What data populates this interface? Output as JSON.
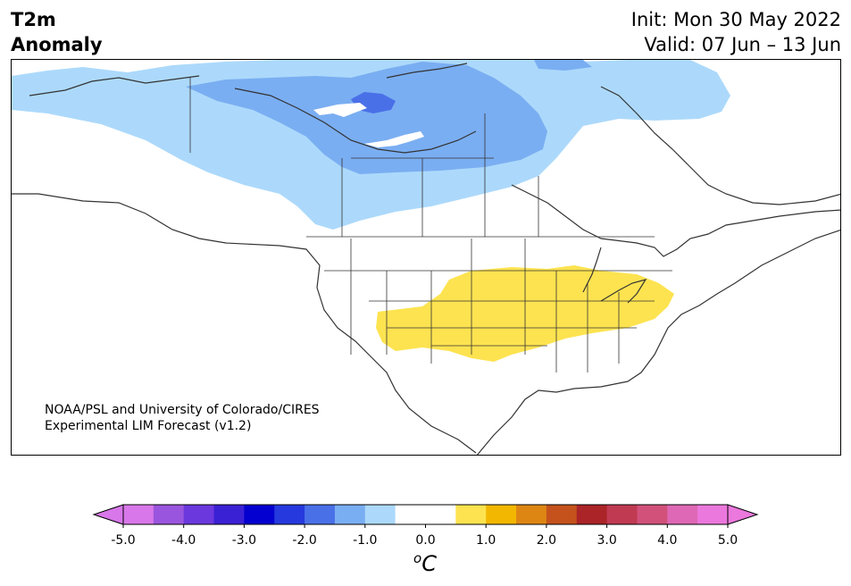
{
  "header": {
    "variable_line1": "T2m",
    "variable_line2": "Anomaly",
    "init": "Init: Mon 30 May 2022",
    "valid": "Valid: 07 Jun – 13 Jun"
  },
  "credit": {
    "line1": "NOAA/PSL and University of Colorado/CIRES",
    "line2": "Experimental LIM Forecast (v1.2)"
  },
  "colorbar": {
    "unit_base": "C",
    "unit_sup": "o",
    "ticks": [
      "-5.0",
      "-4.0",
      "-3.0",
      "-2.0",
      "-1.0",
      "0.0",
      "1.0",
      "2.0",
      "3.0",
      "4.0",
      "5.0"
    ],
    "colors": [
      "#d877e9",
      "#9a55de",
      "#6b38de",
      "#3a21d4",
      "#0400d0",
      "#2639de",
      "#4a70e8",
      "#7aaef2",
      "#acd9fb",
      "#ffffff",
      "#ffffff",
      "#fde350",
      "#f2b700",
      "#de8614",
      "#c5521c",
      "#ab2428",
      "#c03a52",
      "#d1517a",
      "#de68b5",
      "#eb78dd"
    ],
    "under_color": "#d877e9",
    "over_color": "#eb78dd"
  },
  "map_colors": {
    "light_blue": "#acd9fb",
    "mid_blue": "#7aaef2",
    "dark_blue": "#4a70e8",
    "yellow": "#fde350",
    "coast": "#333333",
    "border": "#333333"
  }
}
